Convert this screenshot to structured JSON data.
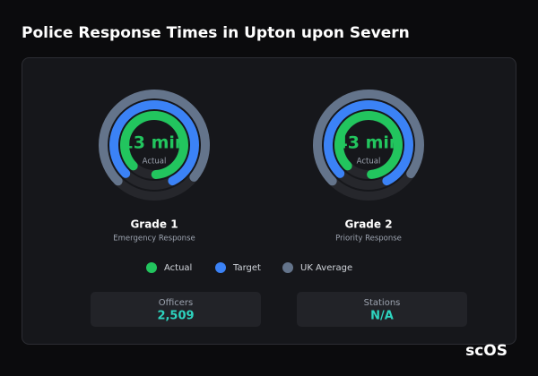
{
  "title": "Police Response Times in Upton upon Severn",
  "gauges": [
    {
      "label": "Grade 1",
      "sublabel": "Emergency Response",
      "value_label": "13 min",
      "center_label": "Actual",
      "range": [
        0,
        15
      ],
      "series": [
        {
          "name": "Actual",
          "color": "#22c55e",
          "value": 13
        },
        {
          "name": "Target",
          "color": "#3b82f6",
          "value": 12
        },
        {
          "name": "UK Average",
          "color": "#64748b",
          "value": 11
        }
      ]
    },
    {
      "label": "Grade 2",
      "sublabel": "Priority Response",
      "value_label": "43 min",
      "center_label": "Actual",
      "range": [
        0,
        50
      ],
      "series": [
        {
          "name": "Actual",
          "color": "#22c55e",
          "value": 43
        },
        {
          "name": "Target",
          "color": "#3b82f6",
          "value": 40
        },
        {
          "name": "UK Average",
          "color": "#64748b",
          "value": 36
        }
      ]
    }
  ],
  "legend": [
    {
      "name": "Actual",
      "color": "#22c55e"
    },
    {
      "name": "Target",
      "color": "#3b82f6"
    },
    {
      "name": "UK Average",
      "color": "#64748b"
    }
  ],
  "stats": [
    {
      "label": "Officers",
      "value": "2,509"
    },
    {
      "label": "Stations",
      "value": "N/A"
    }
  ],
  "watermark": "scOS"
}
